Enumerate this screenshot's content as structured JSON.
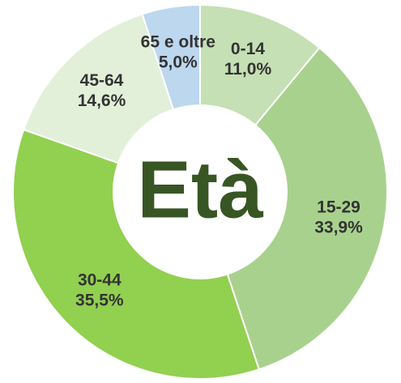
{
  "chart_data": {
    "type": "pie",
    "donut": true,
    "center_label": "Età",
    "categories": [
      "0-14",
      "15-29",
      "30-44",
      "45-64",
      "65 e oltre"
    ],
    "values": [
      11.0,
      33.9,
      35.5,
      14.6,
      5.0
    ],
    "value_labels": [
      "11,0%",
      "33,9%",
      "35,5%",
      "14,6%",
      "5,0%"
    ],
    "colors": [
      "#c5e0b4",
      "#a9d18e",
      "#92d050",
      "#e2f0d9",
      "#bdd7ee"
    ]
  }
}
